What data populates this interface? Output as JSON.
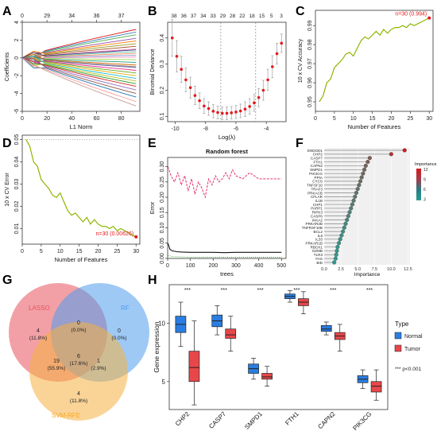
{
  "figure": {
    "panel_letters": [
      "A",
      "B",
      "C",
      "D",
      "E",
      "F",
      "G",
      "H"
    ]
  },
  "chart_data": [
    {
      "panel": "A",
      "type": "line",
      "xlabel": "L1 Norm",
      "ylabel": "Coefficients",
      "xlim": [
        0,
        95
      ],
      "ylim": [
        -6,
        4
      ],
      "x_ticks": [
        0,
        20,
        40,
        60,
        80
      ],
      "y_ticks": [
        -6,
        -4,
        -2,
        0,
        2,
        4
      ],
      "top_ticks": [
        {
          "x": 0,
          "label": "0"
        },
        {
          "x": 20,
          "label": "29"
        },
        {
          "x": 40,
          "label": "34"
        },
        {
          "x": 60,
          "label": "36"
        },
        {
          "x": 80,
          "label": "37"
        }
      ],
      "colors": [
        "#e41a1c",
        "#377eb8",
        "#4daf4a",
        "#984ea3",
        "#ff7f00",
        "#999933",
        "#a65628",
        "#f781bf",
        "#66c2a5",
        "#fc8d62",
        "#8da0cb",
        "#e78ac3",
        "#a6d854",
        "#1b9e77",
        "#d95f02",
        "#7570b3",
        "#e7298a",
        "#66a61e",
        "#e6ab02",
        "#17becf",
        "#bcbd22",
        "#2ca02c",
        "#d62728",
        "#9467bd",
        "#8c564b",
        "#1f77b4",
        "#ff9896",
        "#c49c94",
        "#7f7f7f",
        "#393b79"
      ],
      "endpoints": [
        3.2,
        2.9,
        2.6,
        2.2,
        1.9,
        1.6,
        1.3,
        1.0,
        0.7,
        0.5,
        0.3,
        0.1,
        -0.2,
        -0.5,
        -0.8,
        -1.1,
        -1.4,
        -1.7,
        -2.0,
        -2.3,
        -2.6,
        -2.9,
        -3.2,
        -3.6,
        -4.0,
        -4.4,
        -4.9,
        -5.4,
        -1.0,
        0.9
      ]
    },
    {
      "panel": "B",
      "type": "scatter",
      "xlabel": "Log(λ)",
      "ylabel": "Binomial Deviance",
      "xlim": [
        -10.5,
        -2.7
      ],
      "ylim": [
        0.08,
        0.46
      ],
      "x_ticks": [
        -10,
        -8,
        -6,
        -4
      ],
      "y_ticks": [
        0.1,
        0.2,
        0.3,
        0.4
      ],
      "top_labels": [
        "38",
        "36",
        "37",
        "34",
        "33",
        "29",
        "28",
        "22",
        "18",
        "15",
        "5",
        "3"
      ],
      "vlines": [
        -7.0,
        -4.7
      ],
      "x": [
        -10.2,
        -9.9,
        -9.6,
        -9.3,
        -9.0,
        -8.7,
        -8.4,
        -8.1,
        -7.8,
        -7.5,
        -7.2,
        -6.9,
        -6.6,
        -6.3,
        -6.0,
        -5.7,
        -5.4,
        -5.1,
        -4.8,
        -4.5,
        -4.2,
        -3.9,
        -3.6,
        -3.3,
        -3.0
      ],
      "y": [
        0.4,
        0.33,
        0.28,
        0.24,
        0.21,
        0.18,
        0.16,
        0.14,
        0.13,
        0.12,
        0.115,
        0.112,
        0.112,
        0.114,
        0.117,
        0.121,
        0.128,
        0.138,
        0.152,
        0.172,
        0.2,
        0.24,
        0.29,
        0.34,
        0.38
      ],
      "err": [
        0.07,
        0.06,
        0.05,
        0.045,
        0.04,
        0.035,
        0.03,
        0.028,
        0.026,
        0.025,
        0.024,
        0.024,
        0.024,
        0.024,
        0.025,
        0.026,
        0.028,
        0.03,
        0.032,
        0.035,
        0.038,
        0.04,
        0.042,
        0.04,
        0.035
      ]
    },
    {
      "panel": "C",
      "type": "line",
      "xlabel": "Number of Features",
      "ylabel": "10 x CV Accuracy",
      "xlim": [
        0,
        31
      ],
      "ylim": [
        0.945,
        0.998
      ],
      "x_ticks": [
        0,
        5,
        10,
        15,
        20,
        25,
        30
      ],
      "y_ticks": [
        0.95,
        0.96,
        0.97,
        0.98,
        0.99
      ],
      "x": [
        1,
        2,
        3,
        4,
        5,
        6,
        7,
        8,
        9,
        10,
        11,
        12,
        13,
        14,
        15,
        16,
        17,
        18,
        19,
        20,
        21,
        22,
        23,
        24,
        25,
        26,
        27,
        28,
        29,
        30
      ],
      "y": [
        0.95,
        0.953,
        0.96,
        0.962,
        0.968,
        0.97,
        0.972,
        0.975,
        0.976,
        0.974,
        0.978,
        0.982,
        0.984,
        0.983,
        0.985,
        0.987,
        0.985,
        0.988,
        0.986,
        0.988,
        0.989,
        0.989,
        0.99,
        0.989,
        0.991,
        0.99,
        0.991,
        0.992,
        0.993,
        0.994
      ],
      "annotation": "n=30 (0.994)",
      "highlight": {
        "x": 30,
        "y": 0.994
      }
    },
    {
      "panel": "D",
      "type": "line",
      "xlabel": "Number of Features",
      "ylabel": "10 x CV Error",
      "xlim": [
        0,
        31
      ],
      "ylim": [
        0.003,
        0.052
      ],
      "x_ticks": [
        0,
        5,
        10,
        15,
        20,
        25,
        30
      ],
      "y_ticks": [
        0.01,
        0.02,
        0.03,
        0.04,
        0.05
      ],
      "x": [
        1,
        2,
        3,
        4,
        5,
        6,
        7,
        8,
        9,
        10,
        11,
        12,
        13,
        14,
        15,
        16,
        17,
        18,
        19,
        20,
        21,
        22,
        23,
        24,
        25,
        26,
        27,
        28,
        29,
        30
      ],
      "y": [
        0.05,
        0.047,
        0.04,
        0.038,
        0.032,
        0.03,
        0.028,
        0.025,
        0.024,
        0.026,
        0.022,
        0.018,
        0.016,
        0.017,
        0.015,
        0.013,
        0.015,
        0.012,
        0.014,
        0.012,
        0.011,
        0.011,
        0.01,
        0.011,
        0.009,
        0.01,
        0.009,
        0.008,
        0.007,
        0.00626
      ],
      "annotation": "n=30 (0.00626)",
      "highlight": {
        "x": 30,
        "y": 0.00626
      }
    },
    {
      "panel": "E",
      "type": "line",
      "title": "Random forest",
      "xlabel": "trees",
      "ylabel": "Error",
      "xlim": [
        0,
        520
      ],
      "ylim": [
        0,
        0.33
      ],
      "x_ticks": [
        0,
        100,
        200,
        300,
        400,
        500
      ],
      "y_ticks": [
        0.0,
        0.05,
        0.1,
        0.15,
        0.2,
        0.25,
        0.3
      ],
      "series": [
        {
          "name": "",
          "color": "#e41a5a",
          "x": [
            1,
            15,
            30,
            45,
            60,
            75,
            90,
            105,
            120,
            135,
            150,
            165,
            180,
            195,
            210,
            225,
            240,
            255,
            270,
            285,
            300,
            330,
            360,
            400,
            450,
            500
          ],
          "y": [
            0.3,
            0.27,
            0.25,
            0.28,
            0.24,
            0.27,
            0.22,
            0.26,
            0.21,
            0.25,
            0.23,
            0.2,
            0.26,
            0.24,
            0.27,
            0.25,
            0.26,
            0.28,
            0.26,
            0.29,
            0.27,
            0.26,
            0.28,
            0.26,
            0.26,
            0.26
          ]
        },
        {
          "name": "",
          "color": "#111111",
          "x": [
            1,
            10,
            20,
            40,
            60,
            100,
            150,
            200,
            250,
            300,
            400,
            500
          ],
          "y": [
            0.05,
            0.03,
            0.025,
            0.022,
            0.021,
            0.02,
            0.02,
            0.02,
            0.019,
            0.02,
            0.02,
            0.02
          ]
        },
        {
          "name": "",
          "color": "#2ca02c",
          "x": [
            1,
            20,
            60,
            100,
            200,
            300,
            500
          ],
          "y": [
            0.01,
            0.006,
            0.005,
            0.004,
            0.004,
            0.004,
            0.004
          ]
        }
      ]
    },
    {
      "panel": "F",
      "type": "scatter",
      "xlabel": "Importance",
      "xlim": [
        0,
        12.8
      ],
      "x_ticks": [
        0.0,
        2.5,
        5.0,
        7.5,
        10.0,
        12.5
      ],
      "categories": [
        "ENDOD1",
        "CHP2",
        "CASP7",
        "FTH1",
        "CAPN2",
        "SMPD1",
        "PIK3CG",
        "PPIA",
        "CYCS",
        "TNFSF10",
        "TRAF3",
        "PRKACB",
        "CFLAR",
        "IL1B",
        "CHP1",
        "PARP1",
        "RIPK3",
        "CASP6",
        "IKKA2",
        "PRKAR2B",
        "TNFRSF10B",
        "BCL2",
        "IL6",
        "IL33",
        "PRKAR1B",
        "RBCK1",
        "GZMB",
        "TLR3",
        "FAS",
        "BID"
      ],
      "values": [
        12.0,
        10.0,
        6.8,
        6.5,
        6.2,
        6.0,
        5.8,
        5.6,
        5.4,
        5.2,
        5.0,
        4.8,
        4.6,
        4.4,
        4.2,
        4.0,
        3.8,
        3.6,
        3.4,
        3.2,
        3.0,
        2.8,
        2.6,
        2.4,
        2.2,
        2.0,
        1.9,
        1.8,
        1.7,
        1.5
      ],
      "legend": {
        "title": "Importance",
        "ticks": [
          "12",
          "9",
          "6",
          "3"
        ],
        "colors": [
          "#d7191c",
          "#a43d4a",
          "#2b7b84",
          "#2a9d8f"
        ]
      }
    },
    {
      "panel": "G",
      "type": "venn",
      "sets": [
        {
          "name": "LASSO",
          "color": "#e8525c"
        },
        {
          "name": "RF",
          "color": "#4f9cec"
        },
        {
          "name": "SVM-RFE",
          "color": "#f5b041"
        }
      ],
      "regions": [
        {
          "id": "lasso_only",
          "count": "4",
          "pct": "(11.8%)"
        },
        {
          "id": "lasso_rf",
          "count": "0",
          "pct": "(0.0%)"
        },
        {
          "id": "rf_only",
          "count": "0",
          "pct": "(0.0%)"
        },
        {
          "id": "lasso_svm",
          "count": "19",
          "pct": "(55.9%)"
        },
        {
          "id": "all",
          "count": "6",
          "pct": "(17.6%)"
        },
        {
          "id": "rf_svm",
          "count": "1",
          "pct": "(2.9%)"
        },
        {
          "id": "svm_only",
          "count": "4",
          "pct": "(11.8%)"
        }
      ]
    },
    {
      "panel": "H",
      "type": "box",
      "ylabel": "Gene expression",
      "ylim": [
        2.6,
        13.3
      ],
      "y_ticks": [
        5,
        10
      ],
      "categories": [
        "CHP2",
        "CASP7",
        "SMPD1",
        "FTH1",
        "CAPN2",
        "PIK3CG"
      ],
      "significance": [
        "***",
        "***",
        "***",
        "***",
        "***",
        "***"
      ],
      "legend": {
        "title": "Type",
        "items": [
          {
            "name": "Normal",
            "color": "#2a7de1"
          },
          {
            "name": "Tumor",
            "color": "#e8474a"
          }
        ],
        "note": "*** p<0.001"
      },
      "series": [
        {
          "name": "Normal",
          "boxes": [
            {
              "min": 8.0,
              "q1": 9.2,
              "median": 9.9,
              "q3": 10.6,
              "max": 11.8
            },
            {
              "min": 9.0,
              "q1": 9.7,
              "median": 10.2,
              "q3": 10.7,
              "max": 11.5
            },
            {
              "min": 5.2,
              "q1": 5.7,
              "median": 6.1,
              "q3": 6.5,
              "max": 7.0
            },
            {
              "min": 11.8,
              "q1": 12.1,
              "median": 12.3,
              "q3": 12.5,
              "max": 12.8
            },
            {
              "min": 9.0,
              "q1": 9.3,
              "median": 9.5,
              "q3": 9.8,
              "max": 10.1
            },
            {
              "min": 4.4,
              "q1": 4.9,
              "median": 5.2,
              "q3": 5.5,
              "max": 6.0
            }
          ]
        },
        {
          "name": "Tumor",
          "boxes": [
            {
              "min": 3.0,
              "q1": 5.0,
              "median": 6.2,
              "q3": 7.6,
              "max": 10.2
            },
            {
              "min": 7.6,
              "q1": 8.7,
              "median": 9.0,
              "q3": 9.5,
              "max": 10.6
            },
            {
              "min": 4.6,
              "q1": 5.2,
              "median": 5.4,
              "q3": 5.7,
              "max": 6.3
            },
            {
              "min": 10.8,
              "q1": 11.5,
              "median": 11.8,
              "q3": 12.1,
              "max": 12.7
            },
            {
              "min": 7.6,
              "q1": 8.6,
              "median": 8.9,
              "q3": 9.2,
              "max": 9.9
            },
            {
              "min": 3.4,
              "q1": 4.1,
              "median": 4.6,
              "q3": 5.0,
              "max": 6.0
            }
          ]
        }
      ]
    }
  ]
}
